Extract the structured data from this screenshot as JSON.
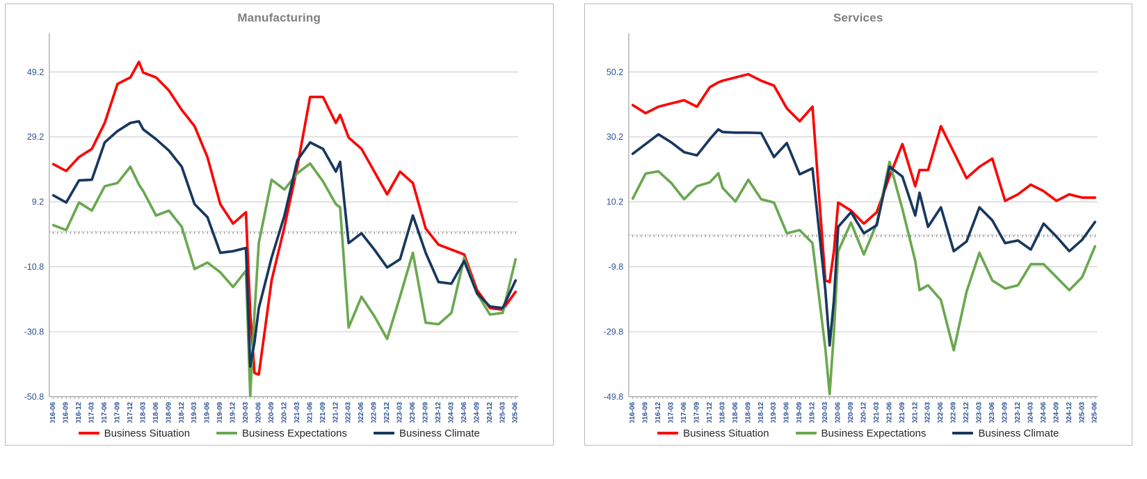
{
  "style": {
    "grid_color": "#c6c6c6",
    "axis_color": "#9e9e9e",
    "zero_line_color": "#808080",
    "tick_label_color": "#2e5395",
    "title_color": "#7f7f7f",
    "card_border_color": "#b9b9b9",
    "background": "#ffffff"
  },
  "legend": {
    "items": [
      {
        "label": "Business Situation",
        "color": "#ff0000"
      },
      {
        "label": "Business Expectations",
        "color": "#6aa84f"
      },
      {
        "label": "Business Climate",
        "color": "#17375e"
      }
    ]
  },
  "chart_data": [
    {
      "type": "line",
      "title": "Manufacturing",
      "y_ticks": [
        49.2,
        29.2,
        9.2,
        -10.8,
        -30.8,
        -50.8
      ],
      "ylim": [
        -50.8,
        53.5
      ],
      "grid": true,
      "zero_reference_line": true,
      "legend_position": "bottom",
      "x_tick_labels": [
        "2016-06",
        "2016-09",
        "2016-12",
        "2017-03",
        "2017-06",
        "2017-09",
        "2017-12",
        "2018-03",
        "2018-06",
        "2018-09",
        "2018-12",
        "2019-03",
        "2019-06",
        "2019-09",
        "2019-12",
        "2020-03",
        "2020-06",
        "2020-09",
        "2020-12",
        "2021-03",
        "2021-06",
        "2021-09",
        "2021-12",
        "2022-03",
        "2022-06",
        "2022-09",
        "2022-12",
        "2023-03",
        "2023-06",
        "2023-09",
        "2023-12",
        "2024-03",
        "2024-06",
        "2024-09",
        "2024-12",
        "2025-03",
        "2025-06"
      ],
      "dates": [
        "2016-06",
        "2016-09",
        "2016-12",
        "2017-03",
        "2017-06",
        "2017-09",
        "2017-12",
        "2018-02",
        "2018-03",
        "2018-06",
        "2018-09",
        "2018-12",
        "2019-03",
        "2019-06",
        "2019-09",
        "2019-12",
        "2020-03",
        "2020-04",
        "2020-05",
        "2020-06",
        "2020-09",
        "2020-12",
        "2021-03",
        "2021-06",
        "2021-09",
        "2021-12",
        "2022-01",
        "2022-03",
        "2022-06",
        "2022-09",
        "2022-12",
        "2023-03",
        "2023-06",
        "2023-09",
        "2023-12",
        "2024-03",
        "2024-06",
        "2024-09",
        "2024-12",
        "2025-03",
        "2025-06"
      ],
      "series": [
        {
          "name": "Business Situation",
          "color": "#ff0000",
          "values": [
            20.8,
            18.7,
            23,
            25.5,
            33.5,
            45.5,
            47.5,
            52.3,
            49,
            47.5,
            43.5,
            37.5,
            32.5,
            23,
            8.5,
            2.5,
            6,
            -25,
            -43.5,
            -44,
            -15,
            1.5,
            20,
            41.5,
            41.5,
            33.5,
            36,
            29,
            25.5,
            18.5,
            11.5,
            18.5,
            15,
            1,
            -4,
            -5.5,
            -7,
            -18,
            -23.5,
            -24,
            -18.5
          ]
        },
        {
          "name": "Business Expectations",
          "color": "#6aa84f",
          "values": [
            2,
            0.5,
            9,
            6.5,
            14,
            15,
            20,
            14.5,
            12.5,
            5,
            6.5,
            1.5,
            -11.5,
            -9.5,
            -12.5,
            -17,
            -12,
            -50.5,
            -25,
            -3.5,
            16,
            13,
            18,
            21,
            15.5,
            8.5,
            7.5,
            -29.5,
            -20,
            -26,
            -33,
            -20,
            -6.5,
            -28,
            -28.5,
            -25,
            -8,
            -19,
            -25.5,
            -25,
            -8.5
          ]
        },
        {
          "name": "Business Climate",
          "color": "#17375e",
          "values": [
            11.2,
            9,
            15.8,
            16,
            27.5,
            31,
            33.5,
            34,
            31.5,
            28.5,
            25,
            20,
            8.5,
            4.5,
            -6.5,
            -6,
            -5,
            -41.5,
            -34,
            -23.5,
            -8,
            5,
            22,
            27.5,
            25.5,
            18.5,
            21.5,
            -3.5,
            -0.5,
            -5.5,
            -11,
            -8.5,
            5,
            -6.5,
            -15.5,
            -16,
            -9,
            -19,
            -23,
            -23.5,
            -15
          ]
        }
      ]
    },
    {
      "type": "line",
      "title": "Services",
      "y_ticks": [
        50.2,
        30.2,
        10.2,
        -9.8,
        -29.8,
        -49.8
      ],
      "ylim": [
        -49.8,
        54.5
      ],
      "grid": true,
      "zero_reference_line": true,
      "legend_position": "bottom",
      "x_tick_labels": [
        "2016-06",
        "2016-09",
        "2016-12",
        "2017-03",
        "2017-06",
        "2017-09",
        "2017-12",
        "2018-03",
        "2018-06",
        "2018-09",
        "2018-12",
        "2019-03",
        "2019-06",
        "2019-09",
        "2019-12",
        "2020-03",
        "2020-06",
        "2020-09",
        "2020-12",
        "2021-03",
        "2021-06",
        "2021-09",
        "2021-12",
        "2022-03",
        "2022-06",
        "2022-09",
        "2022-12",
        "2023-03",
        "2023-06",
        "2023-09",
        "2023-12",
        "2024-03",
        "2024-06",
        "2024-09",
        "2024-12",
        "2025-03",
        "2025-06"
      ],
      "dates": [
        "2016-06",
        "2016-09",
        "2016-12",
        "2017-03",
        "2017-06",
        "2017-09",
        "2017-12",
        "2018-02",
        "2018-03",
        "2018-06",
        "2018-09",
        "2018-12",
        "2019-03",
        "2019-06",
        "2019-09",
        "2019-12",
        "2020-03",
        "2020-04",
        "2020-05",
        "2020-06",
        "2020-09",
        "2020-12",
        "2021-03",
        "2021-06",
        "2021-09",
        "2021-12",
        "2022-01",
        "2022-03",
        "2022-06",
        "2022-09",
        "2022-12",
        "2023-03",
        "2023-06",
        "2023-09",
        "2023-12",
        "2024-03",
        "2024-06",
        "2024-09",
        "2024-12",
        "2025-03",
        "2025-06"
      ],
      "series": [
        {
          "name": "Business Situation",
          "color": "#ff0000",
          "values": [
            40,
            37.5,
            39.5,
            40.5,
            41.5,
            39.5,
            45.5,
            47,
            47.5,
            48.5,
            49.5,
            47.5,
            46,
            39,
            35,
            39.5,
            -14,
            -14.5,
            -5,
            10,
            7.5,
            3.5,
            7,
            18,
            28,
            15,
            20,
            20,
            33.5,
            25.5,
            17.5,
            21,
            23.5,
            10.5,
            12.5,
            15.5,
            13.5,
            10.5,
            12.5,
            11.5,
            11.5
          ]
        },
        {
          "name": "Business Expectations",
          "color": "#6aa84f",
          "values": [
            11.2,
            18.9,
            19.6,
            16,
            11,
            15,
            16.2,
            19,
            14.5,
            10.3,
            17,
            11,
            10,
            0.5,
            1.5,
            -2.5,
            -35,
            -49,
            -30,
            -5,
            3.8,
            -6,
            3.5,
            22.5,
            8,
            -8,
            -17,
            -15.5,
            -20,
            -35.5,
            -17.5,
            -5.5,
            -14,
            -16.5,
            -15.5,
            -9,
            -9,
            -13,
            -17,
            -13,
            -3.5
          ]
        },
        {
          "name": "Business Climate",
          "color": "#17375e",
          "values": [
            25,
            28,
            31,
            28.5,
            25.5,
            24.5,
            29.5,
            32.5,
            31.7,
            31.5,
            31.5,
            31.4,
            24,
            28.3,
            18.7,
            20.5,
            -17,
            -34,
            -20,
            2.5,
            7,
            0.5,
            3,
            21,
            18,
            6,
            13,
            2.5,
            8.5,
            -5,
            -2,
            8.5,
            4.5,
            -2.5,
            -1.7,
            -4.5,
            3.5,
            -0.5,
            -5,
            -1.5,
            4
          ]
        }
      ]
    }
  ]
}
